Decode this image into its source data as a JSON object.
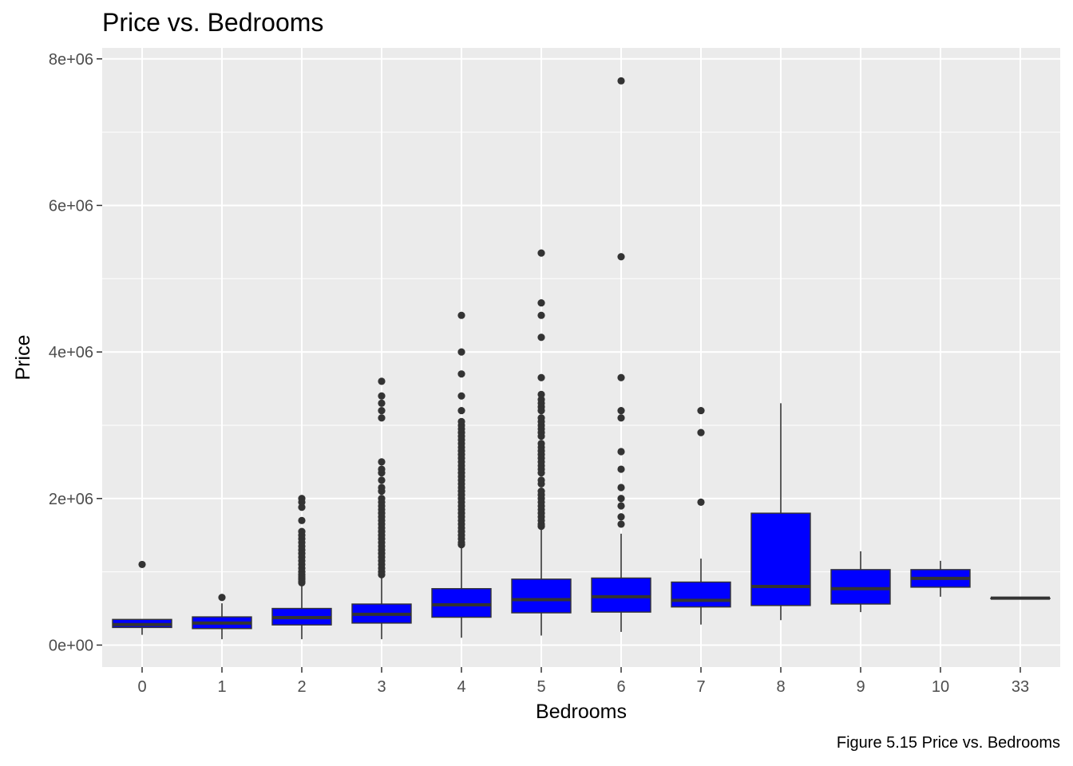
{
  "caption": "Figure 5.15 Price vs. Bedrooms",
  "chart_data": {
    "type": "boxplot",
    "title": "Price vs. Bedrooms",
    "xlabel": "Bedrooms",
    "ylabel": "Price",
    "categories": [
      "0",
      "1",
      "2",
      "3",
      "4",
      "5",
      "6",
      "7",
      "8",
      "9",
      "10",
      "33"
    ],
    "ylim": [
      -300000,
      8150000
    ],
    "yticks": [
      0,
      2000000,
      4000000,
      6000000,
      8000000
    ],
    "ytick_labels": [
      "0e+00",
      "2e+06",
      "4e+06",
      "6e+06",
      "8e+06"
    ],
    "grid": true,
    "colors": {
      "panel": "#EBEBEB",
      "grid": "#FFFFFF",
      "box_fill": "#0000FF",
      "box_line": "#333333",
      "outlier": "#333333"
    },
    "boxes": [
      {
        "category": "0",
        "whisker_low": 140000,
        "q1": 240000,
        "median": 280000,
        "q3": 350000,
        "whisker_high": 350000,
        "outliers": [
          1100000
        ]
      },
      {
        "category": "1",
        "whisker_low": 80000,
        "q1": 225000,
        "median": 300000,
        "q3": 385000,
        "whisker_high": 570000,
        "outliers": [
          650000
        ]
      },
      {
        "category": "2",
        "whisker_low": 80000,
        "q1": 275000,
        "median": 375000,
        "q3": 500000,
        "whisker_high": 830000,
        "outliers": [
          850000,
          870000,
          900000,
          930000,
          960000,
          1000000,
          1050000,
          1100000,
          1150000,
          1200000,
          1250000,
          1300000,
          1350000,
          1400000,
          1450000,
          1500000,
          1550000,
          1700000,
          1880000,
          1950000,
          2000000
        ]
      },
      {
        "category": "3",
        "whisker_low": 80000,
        "q1": 300000,
        "median": 420000,
        "q3": 560000,
        "whisker_high": 950000,
        "outliers": [
          960000,
          1000000,
          1050000,
          1100000,
          1150000,
          1200000,
          1250000,
          1300000,
          1350000,
          1400000,
          1450000,
          1500000,
          1550000,
          1600000,
          1650000,
          1700000,
          1750000,
          1800000,
          1850000,
          1900000,
          1950000,
          2000000,
          2100000,
          2150000,
          2250000,
          2350000,
          2400000,
          2500000,
          3100000,
          3200000,
          3300000,
          3400000,
          3600000
        ]
      },
      {
        "category": "4",
        "whisker_low": 100000,
        "q1": 380000,
        "median": 550000,
        "q3": 770000,
        "whisker_high": 1350000,
        "outliers": [
          1370000,
          1400000,
          1450000,
          1500000,
          1550000,
          1600000,
          1650000,
          1700000,
          1750000,
          1800000,
          1850000,
          1900000,
          1950000,
          2000000,
          2050000,
          2100000,
          2150000,
          2200000,
          2250000,
          2300000,
          2350000,
          2400000,
          2450000,
          2500000,
          2550000,
          2600000,
          2650000,
          2700000,
          2750000,
          2800000,
          2850000,
          2900000,
          2950000,
          3000000,
          3050000,
          3200000,
          3400000,
          3700000,
          4000000,
          4500000
        ]
      },
      {
        "category": "5",
        "whisker_low": 130000,
        "q1": 440000,
        "median": 620000,
        "q3": 900000,
        "whisker_high": 1600000,
        "outliers": [
          1620000,
          1650000,
          1700000,
          1750000,
          1800000,
          1850000,
          1900000,
          1950000,
          2000000,
          2050000,
          2100000,
          2200000,
          2250000,
          2350000,
          2400000,
          2450000,
          2500000,
          2550000,
          2600000,
          2650000,
          2700000,
          2750000,
          2850000,
          2900000,
          2950000,
          3000000,
          3050000,
          3100000,
          3200000,
          3250000,
          3300000,
          3350000,
          3420000,
          3650000,
          4200000,
          4500000,
          4670000,
          5350000
        ]
      },
      {
        "category": "6",
        "whisker_low": 180000,
        "q1": 450000,
        "median": 660000,
        "q3": 915000,
        "whisker_high": 1520000,
        "outliers": [
          1650000,
          1750000,
          1900000,
          2000000,
          2150000,
          2400000,
          2640000,
          3100000,
          3200000,
          3650000,
          5300000,
          7700000
        ]
      },
      {
        "category": "7",
        "whisker_low": 280000,
        "q1": 520000,
        "median": 610000,
        "q3": 860000,
        "whisker_high": 1180000,
        "outliers": [
          1950000,
          2900000,
          3200000
        ]
      },
      {
        "category": "8",
        "whisker_low": 340000,
        "q1": 540000,
        "median": 800000,
        "q3": 1800000,
        "whisker_high": 3300000,
        "outliers": []
      },
      {
        "category": "9",
        "whisker_low": 450000,
        "q1": 560000,
        "median": 770000,
        "q3": 1030000,
        "whisker_high": 1280000,
        "outliers": []
      },
      {
        "category": "10",
        "whisker_low": 660000,
        "q1": 790000,
        "median": 910000,
        "q3": 1030000,
        "whisker_high": 1150000,
        "outliers": []
      },
      {
        "category": "33",
        "whisker_low": 640000,
        "q1": 640000,
        "median": 640000,
        "q3": 640000,
        "whisker_high": 640000,
        "outliers": []
      }
    ]
  }
}
